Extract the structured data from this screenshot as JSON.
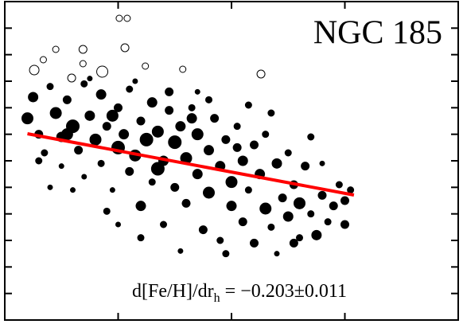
{
  "chart_data": {
    "type": "scatter",
    "title": "NGC 185",
    "annotation": {
      "main": "d[Fe/H]/dr",
      "subscript": "h",
      "rest": "= −0.203±0.011"
    },
    "xlim": [
      0,
      4
    ],
    "xticks": [
      1,
      2,
      3
    ],
    "ylim": [
      0,
      12
    ],
    "yticks": [
      1,
      2,
      3,
      4,
      5,
      6,
      7,
      8,
      9,
      10,
      11
    ],
    "series": [
      {
        "color": "#000000",
        "filled": true,
        "x": [
          0.2,
          0.25,
          0.3,
          0.35,
          0.4,
          0.45,
          0.5,
          0.5,
          0.55,
          0.6,
          0.65,
          0.7,
          0.7,
          0.75,
          0.8,
          0.85,
          0.85,
          0.9,
          0.95,
          1.0,
          1.0,
          1.05,
          1.1,
          1.1,
          1.15,
          1.2,
          1.2,
          1.25,
          1.3,
          1.3,
          1.35,
          1.4,
          1.4,
          1.45,
          1.5,
          1.5,
          1.55,
          1.55,
          1.6,
          1.6,
          1.65,
          1.7,
          1.7,
          1.75,
          1.8,
          1.8,
          1.85,
          1.9,
          1.9,
          1.95,
          2.0,
          2.0,
          2.05,
          2.1,
          2.1,
          2.15,
          2.2,
          2.2,
          2.25,
          2.3,
          2.3,
          2.35,
          2.4,
          2.4,
          2.45,
          2.5,
          2.5,
          2.55,
          2.6,
          2.6,
          2.65,
          2.7,
          2.75,
          2.8,
          2.8,
          2.85,
          2.9,
          2.95,
          3.0,
          3.0,
          3.05,
          0.3,
          0.6,
          0.9,
          1.2,
          0.75,
          1.15,
          1.7,
          2.15,
          2.35,
          2.7,
          0.4,
          1.0,
          1.95,
          2.55,
          1.35,
          1.45,
          1.65,
          1.8,
          2.05,
          0.55,
          0.95
        ],
        "values": [
          7.6,
          8.4,
          7.0,
          6.3,
          8.8,
          7.8,
          6.9,
          5.8,
          8.3,
          7.3,
          6.4,
          5.4,
          8.9,
          7.7,
          6.8,
          5.9,
          8.5,
          7.3,
          4.9,
          6.5,
          8.0,
          7.0,
          5.6,
          8.7,
          6.2,
          4.3,
          7.5,
          6.8,
          5.2,
          8.2,
          7.1,
          6.0,
          3.6,
          7.9,
          6.7,
          5.0,
          2.6,
          7.3,
          4.4,
          6.1,
          8.0,
          5.5,
          7.0,
          3.4,
          6.4,
          4.8,
          7.6,
          5.8,
          3.0,
          6.8,
          4.3,
          5.2,
          7.3,
          6.0,
          3.7,
          4.9,
          6.6,
          2.9,
          5.5,
          4.2,
          7.0,
          3.5,
          5.9,
          2.5,
          4.6,
          6.3,
          3.9,
          5.1,
          3.1,
          4.4,
          5.8,
          4.0,
          3.2,
          4.7,
          5.9,
          3.7,
          4.3,
          5.1,
          4.5,
          3.6,
          4.9,
          6.0,
          4.9,
          4.1,
          3.1,
          9.1,
          9.0,
          8.6,
          8.1,
          7.8,
          6.9,
          5.0,
          3.6,
          2.5,
          2.9,
          5.7,
          8.6,
          7.6,
          8.3,
          6.5,
          7.0,
          7.7
        ],
        "sizes": [
          7,
          6,
          5,
          4,
          4,
          7,
          6,
          3,
          5,
          8,
          5,
          3,
          4,
          6,
          7,
          4,
          6,
          5,
          3,
          8,
          5,
          6,
          5,
          4,
          7,
          6,
          5,
          8,
          4,
          6,
          7,
          6,
          4,
          5,
          8,
          5,
          3,
          6,
          5,
          7,
          4,
          6,
          7,
          5,
          6,
          7,
          5,
          6,
          4,
          5,
          6,
          7,
          4,
          6,
          5,
          4,
          5,
          5,
          6,
          7,
          4,
          4,
          6,
          3,
          5,
          4,
          6,
          5,
          4,
          7,
          5,
          4,
          6,
          5,
          3,
          4,
          5,
          4,
          5,
          5,
          4,
          4,
          3,
          4,
          4,
          3,
          3,
          3,
          4,
          4,
          4,
          3,
          3,
          4,
          5,
          8,
          5,
          6,
          4,
          5,
          7,
          7
        ]
      },
      {
        "color": "#000000",
        "filled": false,
        "x": [
          0.26,
          0.34,
          0.45,
          0.69,
          0.69,
          0.59,
          0.86,
          1.01,
          1.08,
          1.06,
          1.24,
          1.57,
          2.26
        ],
        "values": [
          9.42,
          9.81,
          10.2,
          10.2,
          9.66,
          9.12,
          9.36,
          11.37,
          11.37,
          10.26,
          9.57,
          9.45,
          9.27
        ],
        "sizes": [
          6,
          4,
          4,
          5,
          4,
          5,
          7,
          4,
          4,
          5,
          4,
          4,
          5
        ]
      }
    ],
    "fit": {
      "color": "#ff0000",
      "x": [
        0.2,
        3.08
      ],
      "values": [
        7.02,
        4.71
      ]
    }
  }
}
